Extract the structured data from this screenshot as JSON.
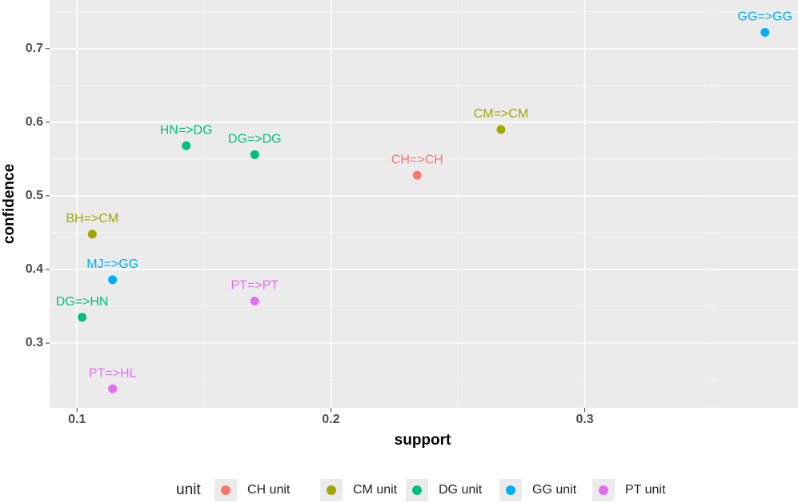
{
  "chart_data": {
    "type": "scatter",
    "x_label": "support",
    "y_label": "confidence",
    "legend_title": "unit",
    "xlim": [
      0.0892,
      0.384
    ],
    "ylim": [
      0.212,
      0.766
    ],
    "xticks": [
      0.1,
      0.2,
      0.3
    ],
    "yticks": [
      0.3,
      0.4,
      0.5,
      0.6,
      0.7
    ],
    "xminor": [
      0.15,
      0.25,
      0.35
    ],
    "yminor": [
      0.25,
      0.35,
      0.45,
      0.55,
      0.65,
      0.75
    ],
    "grid": true,
    "legend": "bottom",
    "series": [
      {
        "name": "CH unit",
        "color": "#F8766D",
        "x": [
          0.234
        ],
        "values": [
          0.528
        ],
        "labels": [
          "CH=>CH"
        ]
      },
      {
        "name": "CM unit",
        "color": "#A3A500",
        "x": [
          0.267,
          0.106
        ],
        "values": [
          0.59,
          0.448
        ],
        "labels": [
          "CM=>CM",
          "BH=>CM"
        ]
      },
      {
        "name": "DG unit",
        "color": "#00BF7D",
        "x": [
          0.143,
          0.17,
          0.102
        ],
        "values": [
          0.568,
          0.556,
          0.335
        ],
        "labels": [
          "HN=>DG",
          "DG=>DG",
          "DG=>HN"
        ]
      },
      {
        "name": "GG unit",
        "color": "#00B0F6",
        "x": [
          0.371,
          0.114
        ],
        "values": [
          0.722,
          0.386
        ],
        "labels": [
          "GG=>GG",
          "MJ=>GG"
        ]
      },
      {
        "name": "PT unit",
        "color": "#E76BF3",
        "x": [
          0.17,
          0.114
        ],
        "values": [
          0.357,
          0.238
        ],
        "labels": [
          "PT=>PT",
          "PT=>HL"
        ]
      }
    ]
  }
}
